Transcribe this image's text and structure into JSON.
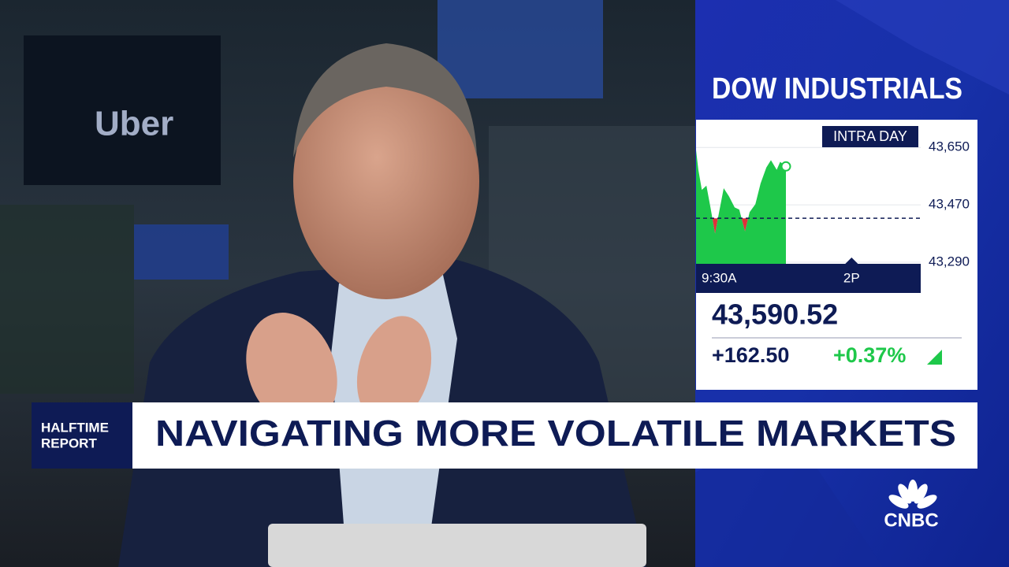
{
  "chart_data": {
    "type": "area",
    "title": "DOW INDUSTRIALS",
    "badge": "INTRA DAY",
    "x": [
      0,
      4,
      10,
      18,
      25,
      33,
      40,
      48,
      57,
      67,
      75,
      85,
      93,
      103,
      112,
      122,
      130,
      140,
      146,
      156
    ],
    "values": [
      43642,
      43580,
      43517,
      43530,
      43462,
      43380,
      43447,
      43522,
      43497,
      43462,
      43455,
      43387,
      43447,
      43472,
      43537,
      43587,
      43610,
      43580,
      43605,
      43590.52
    ],
    "color": "#1ec84a",
    "down_color": "#e0303a",
    "xlim": [
      0,
      390
    ],
    "xticks": [
      {
        "value": 0,
        "label": "9:30A"
      },
      {
        "value": 270,
        "label": "2P"
      }
    ],
    "ylim": [
      43285,
      43737
    ],
    "yticks": [
      {
        "value": 43290,
        "label": "43,290"
      },
      {
        "value": 43470,
        "label": "43,470"
      },
      {
        "value": 43650,
        "label": "43,650"
      }
    ],
    "previous_close": 43428.02,
    "last": {
      "value": 43590.52,
      "label": "43,590.52"
    },
    "change": {
      "value": 162.5,
      "label": "+162.50"
    },
    "change_pct": {
      "value": 0.37,
      "label": "+0.37%"
    }
  },
  "banner": {
    "show": [
      "HALFTIME",
      "REPORT"
    ],
    "headline": "NAVIGATING MORE VOLATILE MARKETS"
  },
  "network": "CNBC"
}
